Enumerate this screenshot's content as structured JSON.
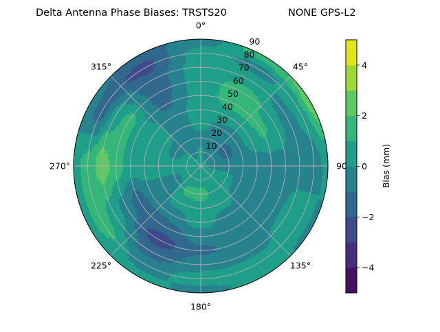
{
  "chart_data": {
    "type": "polar-contour",
    "title_left": "Delta Antenna Phase Biases: TRSTS20",
    "title_right": "NONE GPS-L2",
    "azimuth_direction": "clockwise",
    "azimuth_zero": "north",
    "azimuth_tick_labels": [
      "0°",
      "45°",
      "90",
      "135°",
      "180°",
      "225°",
      "270°",
      "315°"
    ],
    "azimuth_ticks": [
      0,
      45,
      90,
      135,
      180,
      225,
      270,
      315
    ],
    "radial_ticks": [
      10,
      20,
      30,
      40,
      50,
      60,
      70,
      80,
      90
    ],
    "radial_tick_labels": [
      "10",
      "20",
      "30",
      "40",
      "50",
      "60",
      "70",
      "80",
      "90"
    ],
    "rlim": [
      0,
      90
    ],
    "grid": true,
    "colormap": "viridis",
    "levels": [
      -5,
      -4,
      -3,
      -2,
      -1,
      0,
      1,
      2,
      3,
      4,
      5
    ],
    "level_colors": [
      "#45115f",
      "#472d7b",
      "#3e4a89",
      "#31688e",
      "#26838e",
      "#1f9e89",
      "#35b779",
      "#5ec962",
      "#a0da39",
      "#e4e419"
    ],
    "colorbar": {
      "label": "Bias (mm)",
      "ticks": [
        -4,
        -2,
        0,
        2,
        4
      ],
      "tick_labels": [
        "−4",
        "−2",
        "0",
        "2",
        "4"
      ],
      "range": [
        -5,
        5
      ]
    },
    "grid_azimuths": [
      0,
      30,
      60,
      90,
      120,
      150,
      180,
      210,
      240,
      270,
      300,
      330
    ],
    "grid_radii": [
      0,
      10,
      20,
      30,
      40,
      50,
      60,
      70,
      80,
      90
    ],
    "values": [
      [
        0.5,
        0.2,
        -0.3,
        0.3,
        0.5,
        0.5,
        0.5,
        0.5,
        0.4,
        -0.5
      ],
      [
        0.5,
        -0.5,
        -0.5,
        -0.3,
        0.5,
        1.5,
        1.5,
        0.5,
        -0.3,
        1.6
      ],
      [
        0.5,
        -0.5,
        -1.5,
        -0.5,
        0.5,
        1.2,
        0.5,
        -0.5,
        0.5,
        2.5
      ],
      [
        0.5,
        -0.5,
        -0.5,
        -0.5,
        -0.5,
        -0.5,
        -0.3,
        -0.5,
        -0.5,
        0.3
      ],
      [
        0.5,
        0.5,
        0.5,
        -0.5,
        -0.5,
        -0.5,
        -0.5,
        0.5,
        0.5,
        -0.3
      ],
      [
        0.5,
        0.5,
        0.5,
        0.5,
        -0.5,
        -0.5,
        -0.5,
        -0.5,
        0.5,
        0.5
      ],
      [
        0.5,
        0.5,
        1.5,
        0.5,
        0.5,
        -0.5,
        -1.2,
        -0.5,
        0.5,
        -0.5
      ],
      [
        0.5,
        0.5,
        1.2,
        0.5,
        -0.5,
        -1.5,
        -2.5,
        -1.5,
        -0.5,
        0.5
      ],
      [
        0.5,
        0.5,
        -0.5,
        -0.5,
        -0.5,
        -1.5,
        -0.5,
        0.5,
        1.5,
        0.5
      ],
      [
        0.5,
        0.5,
        0.5,
        0.5,
        0.5,
        0.5,
        1.5,
        2.5,
        1.5,
        0.5
      ],
      [
        0.5,
        0.5,
        -0.5,
        0.5,
        0.5,
        0.5,
        1.5,
        0.5,
        -1.5,
        -0.5
      ],
      [
        0.5,
        -0.3,
        -0.5,
        -0.5,
        -0.5,
        -1.2,
        -1.5,
        -1.6,
        -2.3,
        -1.5
      ]
    ]
  }
}
